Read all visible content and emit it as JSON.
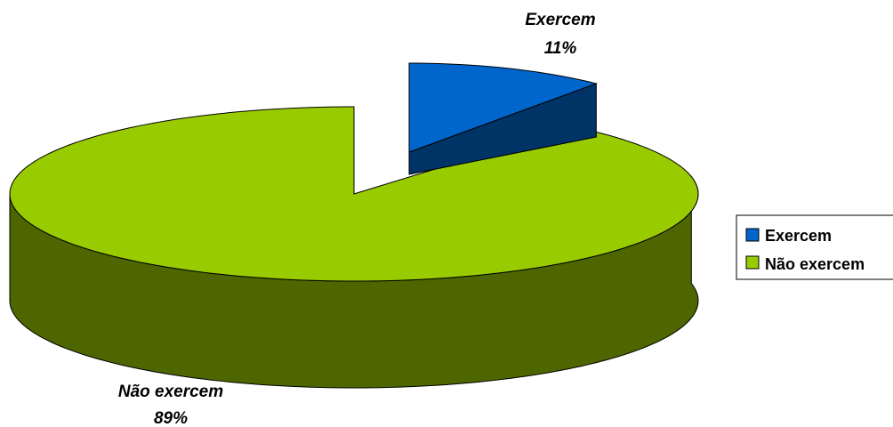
{
  "chart_data": {
    "type": "pie",
    "style": "3d-exploded",
    "title": "",
    "slices": [
      {
        "name": "Exercem",
        "value": 11,
        "label": "Exercem",
        "pct_label": "11%",
        "color": "#0066cc",
        "side_color": "#003366"
      },
      {
        "name": "Não exercem",
        "value": 89,
        "label": "Não exercem",
        "pct_label": "89%",
        "color": "#99cc00",
        "side_color": "#4d6600"
      }
    ],
    "legend": {
      "placement": "right",
      "entries": [
        "Exercem",
        "Não exercem"
      ]
    }
  }
}
